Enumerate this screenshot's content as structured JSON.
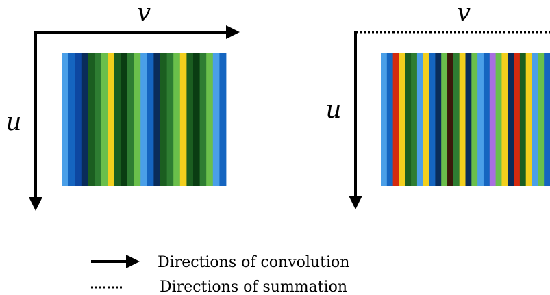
{
  "left_panel": {
    "v_label": "v",
    "u_label": "u",
    "horizontal_axis_style": "solid-arrow",
    "vertical_axis_style": "solid-arrow",
    "stripes": [
      "#4a9fe8",
      "#1565c0",
      "#0d47a1",
      "#0a2c5a",
      "#1b5e20",
      "#2e7d32",
      "#6abf4b",
      "#f2cf1d",
      "#1b5e20",
      "#0a3d12",
      "#2e7d32",
      "#6abf4b",
      "#4a9fe8",
      "#1565c0",
      "#0a2c5a",
      "#1b5e20",
      "#2e7d32",
      "#6abf4b",
      "#f2cf1d",
      "#1b5e20",
      "#0a3d12",
      "#2e7d32",
      "#6abf4b",
      "#4a9fe8",
      "#1565c0"
    ]
  },
  "right_panel": {
    "v_label": "v",
    "u_label": "u",
    "horizontal_axis_style": "dotted-line",
    "vertical_axis_style": "solid-arrow",
    "stripes": [
      "#4a9fe8",
      "#1565c0",
      "#d42a0f",
      "#f2cf1d",
      "#1b5e20",
      "#2e7d32",
      "#4a9fe8",
      "#f2cf1d",
      "#1565c0",
      "#0a2c5a",
      "#6abf4b",
      "#3b1a0a",
      "#2e7d32",
      "#f2cf1d",
      "#0a2c5a",
      "#6abf4b",
      "#4a9fe8",
      "#1565c0",
      "#a86ee0",
      "#6abf4b",
      "#f2cf1d",
      "#0a2c5a",
      "#d42a0f",
      "#1b5e20",
      "#f2cf1d",
      "#4a9fe8",
      "#6abf4b",
      "#1565c0"
    ]
  },
  "legend": {
    "items": [
      {
        "style": "solid-arrow",
        "label": "Directions of convolution"
      },
      {
        "style": "dotted-line",
        "label": "Directions of summation"
      }
    ]
  }
}
